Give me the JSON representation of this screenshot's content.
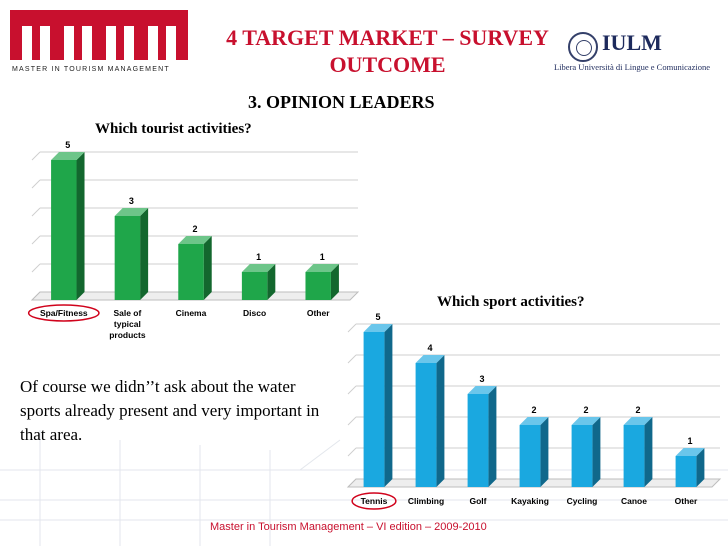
{
  "header": {
    "title": "4 TARGET MARKET – SURVEY OUTCOME",
    "subtitle": "3. OPINION LEADERS",
    "logo_left_text": "MASTER IN TOURISM MANAGEMENT",
    "logo_right_name": "IULM",
    "logo_right_sub": "Libera Università di Lingue e Comunicazione"
  },
  "note": "Of course we didn’’t ask about the water sports already present and very important in that area.",
  "footer": "Master in Tourism Management – VI edition – 2009-2010",
  "colors": {
    "brand_red": "#c8102e",
    "bar_green": "#1fa64a",
    "bar_blue": "#1aa8e0",
    "highlight_red": "#d0021b"
  },
  "chart_data": [
    {
      "type": "bar",
      "title": "Which tourist activities?",
      "categories": [
        "Spa/Fitness",
        "Sale of typical products",
        "Cinema",
        "Disco",
        "Other"
      ],
      "values": [
        5,
        3,
        2,
        1,
        1
      ],
      "highlighted_category": "Spa/Fitness",
      "ylim": [
        0,
        5
      ],
      "grid": true,
      "xlabel": "",
      "ylabel": ""
    },
    {
      "type": "bar",
      "title": "Which sport activities?",
      "categories": [
        "Tennis",
        "Climbing",
        "Golf",
        "Kayaking",
        "Cycling",
        "Canoe",
        "Other"
      ],
      "values": [
        5,
        4,
        3,
        2,
        2,
        2,
        1
      ],
      "highlighted_category": "Tennis",
      "ylim": [
        0,
        5
      ],
      "grid": true,
      "xlabel": "",
      "ylabel": ""
    }
  ]
}
